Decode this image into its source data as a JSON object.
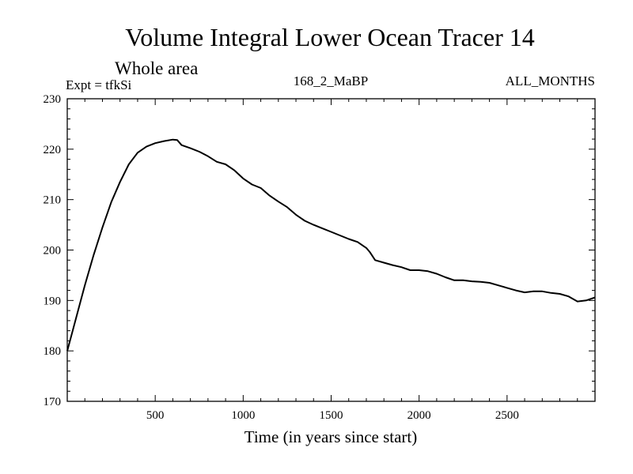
{
  "chart_data": {
    "type": "line",
    "title": "Volume Integral Lower Ocean Tracer 14",
    "subtitle": "Whole area",
    "expt": "Expt = tfkSi",
    "period": "168_2_MaBP",
    "months": "ALL_MONTHS",
    "xlabel": "Time (in years since start)",
    "ylabel": "",
    "xlim": [
      0,
      3000
    ],
    "ylim": [
      170,
      230
    ],
    "xticks": [
      500,
      1000,
      1500,
      2000,
      2500
    ],
    "xtick_labels": [
      "500",
      "1000",
      "1500",
      "2000",
      "2500"
    ],
    "yticks": [
      170,
      180,
      190,
      200,
      210,
      220,
      230
    ],
    "ytick_labels": [
      "170",
      "180",
      "190",
      "200",
      "210",
      "220",
      "230"
    ],
    "grid": false,
    "series": [
      {
        "name": "Tracer 14",
        "x": [
          0,
          50,
          100,
          150,
          200,
          250,
          300,
          350,
          400,
          450,
          500,
          550,
          600,
          625,
          650,
          700,
          750,
          800,
          850,
          900,
          950,
          1000,
          1050,
          1100,
          1150,
          1200,
          1250,
          1300,
          1350,
          1400,
          1450,
          1500,
          1550,
          1600,
          1650,
          1700,
          1720,
          1750,
          1800,
          1850,
          1900,
          1950,
          2000,
          2050,
          2100,
          2150,
          2200,
          2250,
          2300,
          2350,
          2400,
          2450,
          2500,
          2550,
          2600,
          2650,
          2700,
          2750,
          2800,
          2850,
          2900,
          2950,
          3000
        ],
        "values": [
          180.0,
          186.5,
          193.0,
          199.0,
          204.5,
          209.5,
          213.5,
          217.0,
          219.3,
          220.5,
          221.2,
          221.6,
          221.9,
          221.8,
          220.8,
          220.2,
          219.5,
          218.6,
          217.5,
          217.0,
          215.8,
          214.2,
          213.0,
          212.3,
          210.8,
          209.6,
          208.5,
          207.0,
          205.8,
          205.0,
          204.3,
          203.6,
          202.9,
          202.2,
          201.6,
          200.4,
          199.6,
          198.0,
          197.5,
          197.0,
          196.6,
          196.0,
          196.0,
          195.8,
          195.3,
          194.6,
          194.0,
          194.0,
          193.8,
          193.7,
          193.5,
          193.0,
          192.5,
          192.0,
          191.6,
          191.8,
          191.8,
          191.5,
          191.3,
          190.8,
          189.8,
          190.0,
          190.6
        ]
      }
    ]
  }
}
